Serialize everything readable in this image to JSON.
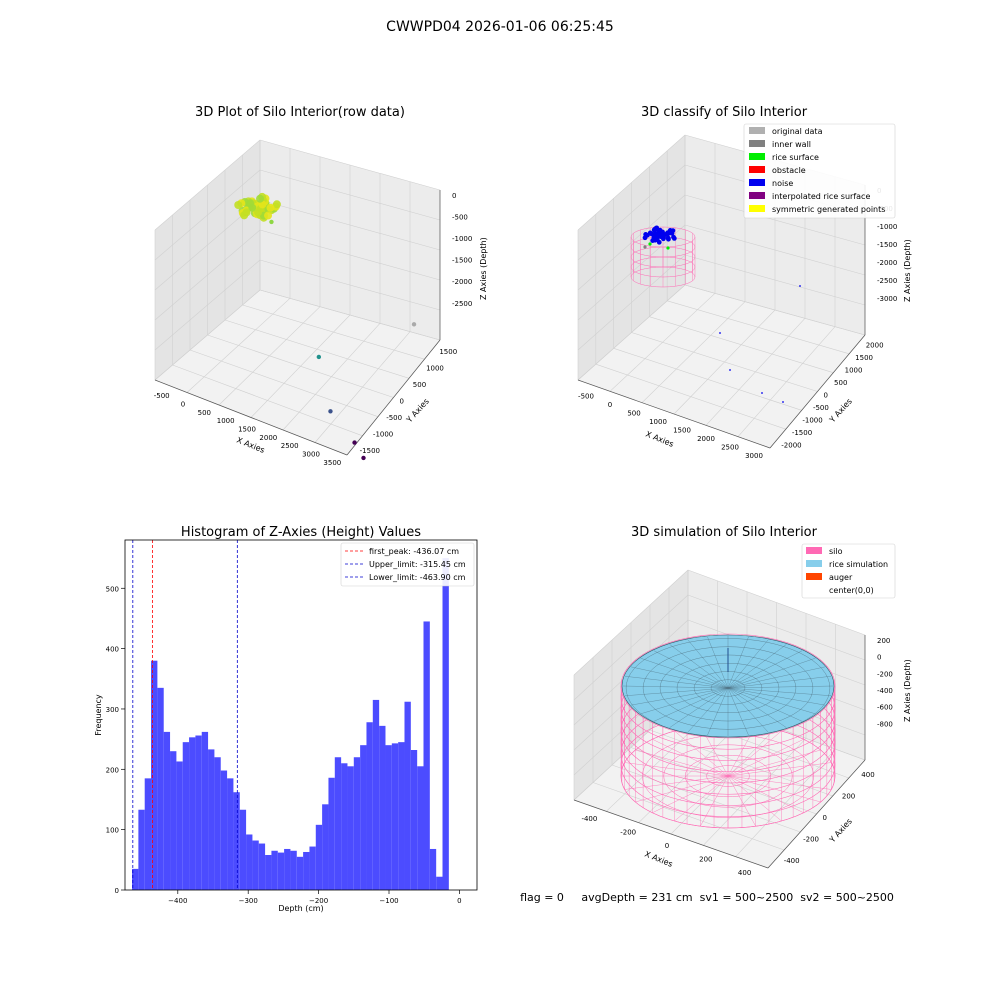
{
  "suptitle": "CWWPD04 2026-01-06 06:25:45",
  "status_line": "flag = 0     avgDepth = 231 cm  sv1 = 500~2500  sv2 = 500~2500",
  "chart_data": [
    {
      "type": "scatter",
      "panel": "raw",
      "title": "3D Plot of Silo Interior(row data)",
      "xlabel": "X Axies",
      "ylabel": "Y Axies",
      "zlabel": "Z Axies (Depth)",
      "x_ticks": [
        "-500",
        "0",
        "500",
        "1000",
        "1500",
        "2000",
        "2500",
        "3000",
        "3500"
      ],
      "y_ticks": [
        "-1500",
        "-1000",
        "-500",
        "0",
        "500",
        "1000",
        "1500"
      ],
      "z_ticks": [
        "0",
        "-500",
        "-1000",
        "-1500",
        "-2000",
        "-2500"
      ],
      "points": [
        {
          "x": 0,
          "y": 0,
          "z": -100,
          "color": "#d8e21b",
          "note": "dense rice surface cluster"
        },
        {
          "x": 300,
          "y": 0,
          "z": -250,
          "color": "#8fd744"
        },
        {
          "x": 2600,
          "y": 1200,
          "z": -1800,
          "color": "#aaaaaa"
        },
        {
          "x": 1200,
          "y": 200,
          "z": -2300,
          "color": "#21918c"
        },
        {
          "x": 2000,
          "y": -600,
          "z": -2600,
          "color": "#3b528b"
        },
        {
          "x": 2800,
          "y": -1000,
          "z": -2700,
          "color": "#440154"
        },
        {
          "x": 3200,
          "y": -1300,
          "z": -2700,
          "color": "#440154"
        }
      ]
    },
    {
      "type": "scatter",
      "panel": "classify",
      "title": "3D classify of Silo Interior",
      "xlabel": "X Axies",
      "ylabel": "Y Axies",
      "zlabel": "Z Axies (Depth)",
      "x_ticks": [
        "-500",
        "0",
        "500",
        "1000",
        "1500",
        "2000",
        "2500",
        "3000"
      ],
      "y_ticks": [
        "-2000",
        "-1500",
        "-1000",
        "-500",
        "0",
        "500",
        "1000",
        "1500",
        "2000"
      ],
      "z_ticks": [
        "0",
        "-500",
        "-1000",
        "-1500",
        "-2000",
        "-2500",
        "-3000"
      ],
      "legend": [
        {
          "label": "original data",
          "color": "#b0b0b0"
        },
        {
          "label": "inner wall",
          "color": "#808080"
        },
        {
          "label": "rice surface",
          "color": "#00ee00"
        },
        {
          "label": "obstacle",
          "color": "#ff0000"
        },
        {
          "label": "noise",
          "color": "#0000ee"
        },
        {
          "label": "interpolated rice surface",
          "color": "#800080"
        },
        {
          "label": "symmetric generated points",
          "color": "#ffff00"
        }
      ]
    },
    {
      "type": "bar",
      "panel": "histogram",
      "title": "Histogram of Z-Axies (Height) Values",
      "xlabel": "Depth (cm)",
      "ylabel": "Frequency",
      "xlim": [
        -475,
        25
      ],
      "ylim": [
        0,
        580
      ],
      "bin_start": -465,
      "bin_width": 9,
      "bar_color": "#4c4cff",
      "values": [
        35,
        133,
        185,
        380,
        335,
        262,
        230,
        213,
        245,
        253,
        256,
        262,
        233,
        220,
        198,
        185,
        162,
        133,
        92,
        82,
        77,
        58,
        65,
        62,
        68,
        65,
        55,
        63,
        72,
        108,
        142,
        186,
        220,
        210,
        205,
        220,
        240,
        278,
        315,
        272,
        240,
        243,
        245,
        312,
        232,
        205,
        445,
        68,
        22,
        550
      ],
      "x_ticks": [
        -400,
        -300,
        -200,
        -100,
        0
      ],
      "y_ticks": [
        0,
        100,
        200,
        300,
        400,
        500
      ],
      "vlines": [
        {
          "x": -436.07,
          "color": "#ff0000",
          "label": "first_peak: -436.07 cm"
        },
        {
          "x": -315.45,
          "color": "#0000cc",
          "label": "Upper_limit: -315.45 cm"
        },
        {
          "x": -463.9,
          "color": "#0000cc",
          "label": "Lower_limit: -463.90 cm"
        }
      ],
      "legend_position": "top-right"
    },
    {
      "type": "scatter",
      "panel": "simulation",
      "title": "3D simulation of Silo Interior",
      "xlabel": "X Axies",
      "ylabel": "Y Axies",
      "zlabel": "Z Axies (Depth)",
      "x_ticks": [
        "-400",
        "-200",
        "0",
        "200",
        "400"
      ],
      "y_ticks": [
        "-400",
        "-200",
        "0",
        "200",
        "400"
      ],
      "z_ticks": [
        "200",
        "0",
        "-200",
        "-400",
        "-600",
        "-800"
      ],
      "legend": [
        {
          "label": "silo",
          "color": "#ff69b4"
        },
        {
          "label": "rice simulation",
          "color": "#87ceeb"
        },
        {
          "label": "auger",
          "color": "#ff4500"
        },
        {
          "label": "center(0,0)",
          "color": "none"
        }
      ]
    }
  ]
}
